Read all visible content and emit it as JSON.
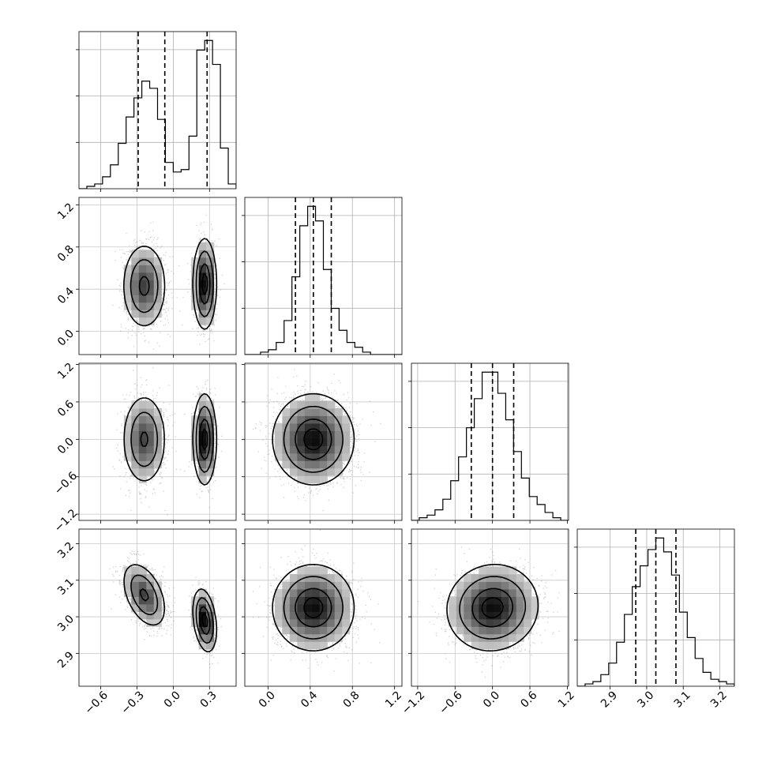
{
  "chart_data": {
    "type": "corner",
    "params": [
      {
        "range": [
          -0.78,
          0.52
        ],
        "ticks": [
          -0.6,
          -0.3,
          0.0,
          0.3
        ],
        "tick_labels": [
          "−0.6",
          "−0.3",
          "0.0",
          "0.3"
        ],
        "quantiles": [
          -0.29,
          -0.07,
          0.28
        ],
        "hist": {
          "edges": [
            -0.78,
            -0.715,
            -0.65,
            -0.585,
            -0.52,
            -0.455,
            -0.39,
            -0.325,
            -0.26,
            -0.195,
            -0.13,
            -0.065,
            0.0,
            0.065,
            0.13,
            0.195,
            0.26,
            0.325,
            0.39,
            0.455,
            0.52
          ],
          "counts": [
            0,
            1,
            2,
            5,
            10,
            19,
            30,
            38,
            45,
            42,
            29,
            11,
            7,
            8,
            22,
            58,
            62,
            52,
            17,
            2
          ]
        }
      },
      {
        "range": [
          -0.22,
          1.27
        ],
        "ticks": [
          0.0,
          0.4,
          0.8,
          1.2
        ],
        "tick_labels": [
          "0.0",
          "0.4",
          "0.8",
          "1.2"
        ],
        "quantiles": [
          0.26,
          0.43,
          0.6
        ],
        "hist": {
          "edges": [
            -0.22,
            -0.1455,
            -0.071,
            0.0035,
            0.078,
            0.1525,
            0.227,
            0.3015,
            0.376,
            0.4505,
            0.525,
            0.5995,
            0.674,
            0.7485,
            0.823,
            0.8975,
            0.972,
            1.0465,
            1.121,
            1.1955,
            1.27
          ],
          "counts": [
            0,
            0,
            1,
            2,
            5,
            14,
            32,
            53,
            61,
            55,
            35,
            19,
            10,
            5,
            3,
            1,
            0,
            0,
            0,
            0
          ]
        }
      },
      {
        "range": [
          -1.3,
          1.22
        ],
        "ticks": [
          -1.2,
          -0.6,
          0.0,
          0.6,
          1.2
        ],
        "tick_labels": [
          "−1.2",
          "−0.6",
          "0.0",
          "0.6",
          "1.2"
        ],
        "quantiles": [
          -0.34,
          0.0,
          0.34
        ],
        "hist": {
          "edges": [
            -1.3,
            -1.174,
            -1.048,
            -0.922,
            -0.796,
            -0.67,
            -0.544,
            -0.418,
            -0.292,
            -0.166,
            -0.04,
            0.086,
            0.212,
            0.338,
            0.464,
            0.59,
            0.716,
            0.842,
            0.968,
            1.094,
            1.22
          ],
          "counts": [
            0,
            1,
            2,
            4,
            8,
            15,
            24,
            35,
            46,
            56,
            56,
            48,
            38,
            26,
            16,
            9,
            6,
            3,
            1,
            0
          ]
        }
      },
      {
        "range": [
          2.81,
          3.24
        ],
        "ticks": [
          2.9,
          3.0,
          3.1,
          3.2
        ],
        "tick_labels": [
          "2.9",
          "3.0",
          "3.1",
          "3.2"
        ],
        "quantiles": [
          2.97,
          3.025,
          3.08
        ],
        "hist": {
          "edges": [
            2.81,
            2.8315,
            2.853,
            2.8745,
            2.896,
            2.9175,
            2.939,
            2.9605,
            2.982,
            3.0035,
            3.025,
            3.0465,
            3.068,
            3.0895,
            3.111,
            3.1325,
            3.154,
            3.1755,
            3.197,
            3.2185,
            3.24
          ],
          "counts": [
            0,
            1,
            2,
            5,
            10,
            19,
            31,
            43,
            52,
            59,
            64,
            58,
            48,
            32,
            21,
            12,
            6,
            3,
            2,
            1
          ]
        }
      }
    ],
    "blobs": {
      "1,0": [
        {
          "cx": -0.24,
          "cy": 0.43,
          "sx": 0.085,
          "sy": 0.19,
          "w": 0.56
        },
        {
          "cx": 0.26,
          "cy": 0.45,
          "sx": 0.045,
          "sy": 0.2,
          "w": 0.44
        }
      ],
      "2,0": [
        {
          "cx": -0.24,
          "cy": 0.0,
          "sx": 0.085,
          "sy": 0.34,
          "w": 0.56
        },
        {
          "cx": 0.26,
          "cy": 0.0,
          "sx": 0.045,
          "sy": 0.34,
          "w": 0.44
        }
      ],
      "2,1": [
        {
          "cx": 0.43,
          "cy": 0.0,
          "sx": 0.18,
          "sy": 0.34,
          "w": 1.0
        }
      ],
      "3,0": [
        {
          "cx": -0.24,
          "cy": 3.06,
          "sx": 0.085,
          "sy": 0.042,
          "w": 0.56,
          "rho": -0.45
        },
        {
          "cx": 0.26,
          "cy": 2.99,
          "sx": 0.045,
          "sy": 0.04,
          "w": 0.44,
          "rho": -0.3
        }
      ],
      "3,1": [
        {
          "cx": 0.43,
          "cy": 3.025,
          "sx": 0.18,
          "sy": 0.055,
          "w": 1.0
        }
      ],
      "3,2": [
        {
          "cx": 0.0,
          "cy": 3.025,
          "sx": 0.34,
          "sy": 0.055,
          "w": 1.0,
          "rho": 0.05
        }
      ]
    }
  }
}
